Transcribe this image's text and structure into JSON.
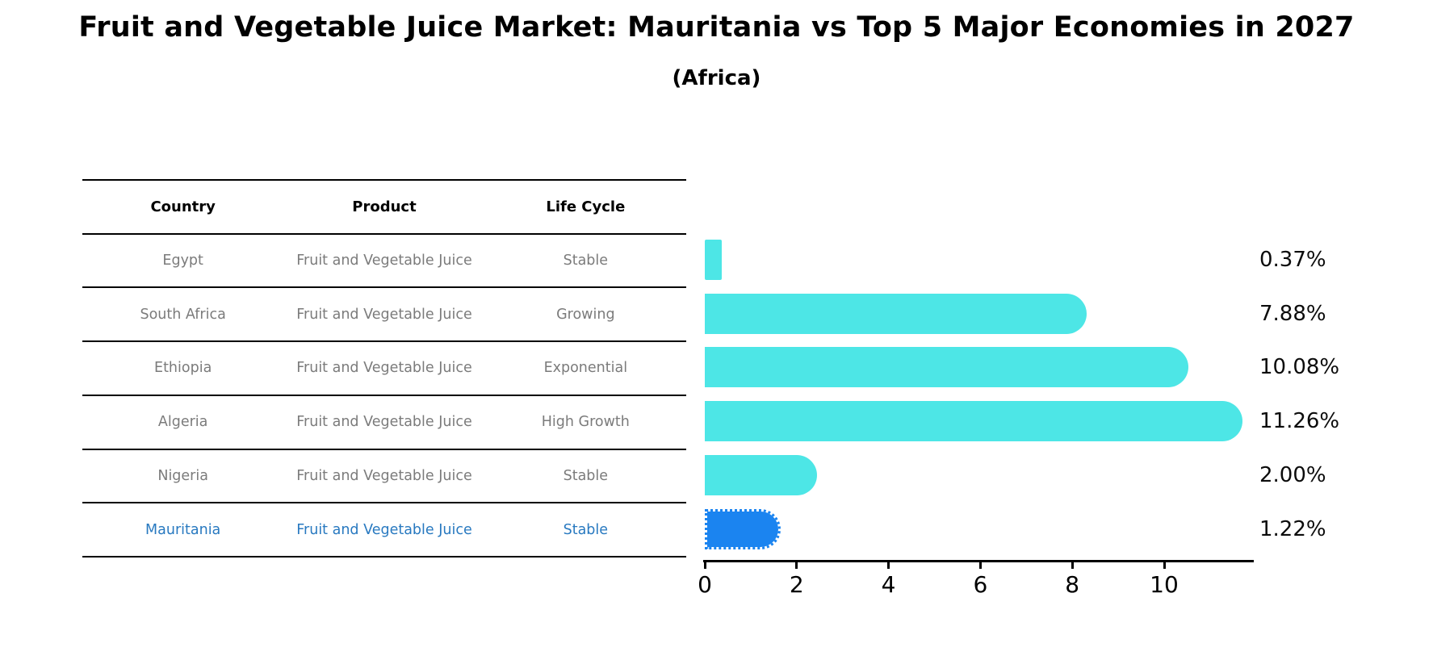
{
  "chart_data": {
    "type": "bar",
    "orientation": "horizontal",
    "title": "Fruit and Vegetable Juice Market: Mauritania vs Top 5 Major Economies in 2027",
    "subtitle": "(Africa)",
    "categories": [
      "Egypt",
      "South Africa",
      "Ethiopia",
      "Algeria",
      "Nigeria",
      "Mauritania"
    ],
    "values": [
      0.37,
      7.88,
      10.08,
      11.26,
      2.0,
      1.22
    ],
    "value_labels": [
      "0.37%",
      "7.88%",
      "10.08%",
      "11.26%",
      "2.00%",
      "1.22%"
    ],
    "x_ticks": [
      "0",
      "2",
      "4",
      "6",
      "8",
      "10"
    ],
    "xlim": [
      0,
      11.93
    ],
    "grid": false,
    "legend": "none",
    "bar_color": "#4DE6E6",
    "highlight_color": "#1B84F0",
    "highlight_index": 5
  },
  "table": {
    "columns": [
      "Country",
      "Product",
      "Life Cycle"
    ],
    "rows": [
      {
        "country": "Egypt",
        "product": "Fruit and Vegetable Juice",
        "life_cycle": "Stable",
        "highlighted": false
      },
      {
        "country": "South Africa",
        "product": "Fruit and Vegetable Juice",
        "life_cycle": "Growing",
        "highlighted": false
      },
      {
        "country": "Ethiopia",
        "product": "Fruit and Vegetable Juice",
        "life_cycle": "Exponential",
        "highlighted": false
      },
      {
        "country": "Algeria",
        "product": "Fruit and Vegetable Juice",
        "life_cycle": "High Growth",
        "highlighted": false
      },
      {
        "country": "Nigeria",
        "product": "Fruit and Vegetable Juice",
        "life_cycle": "Stable",
        "highlighted": false
      },
      {
        "country": "Mauritania",
        "product": "Fruit and Vegetable Juice",
        "life_cycle": "Stable",
        "highlighted": true
      }
    ]
  },
  "colors": {
    "cell_text": "#7b7b7b",
    "header_text": "#000000",
    "highlight_text": "#2879C0",
    "axis": "#000000"
  }
}
